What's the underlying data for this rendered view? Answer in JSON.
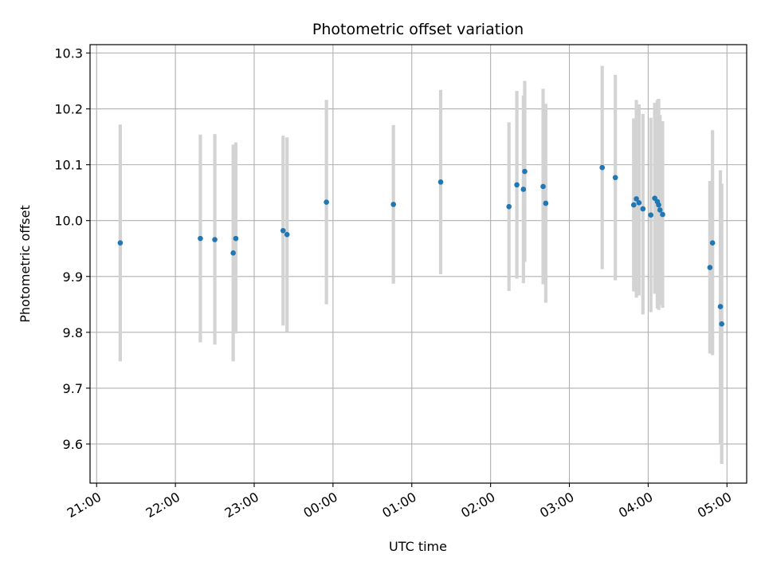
{
  "chart_data": {
    "type": "scatter",
    "title": "Photometric offset variation",
    "xlabel": "UTC time",
    "ylabel": "Photometric offset",
    "grid": true,
    "legend": "none",
    "xlim": [
      "20:55",
      "05:15"
    ],
    "ylim": [
      9.53,
      10.315
    ],
    "x_ticks": [
      "21:00",
      "22:00",
      "23:00",
      "00:00",
      "01:00",
      "02:00",
      "03:00",
      "04:00",
      "05:00"
    ],
    "y_ticks": [
      "9.6",
      "9.7",
      "9.8",
      "9.9",
      "10.0",
      "10.1",
      "10.2",
      "10.3"
    ],
    "colors": {
      "point": "#1f77b4",
      "errorbar": "#d3d3d3",
      "grid": "#b0b0b0"
    },
    "series": [
      {
        "points": [
          {
            "x": "21:18",
            "y": 9.96,
            "ylow": 9.748,
            "yhigh": 10.172
          },
          {
            "x": "22:19",
            "y": 9.968,
            "ylow": 9.782,
            "yhigh": 10.154
          },
          {
            "x": "22:30",
            "y": 9.966,
            "ylow": 9.778,
            "yhigh": 10.155
          },
          {
            "x": "22:44",
            "y": 9.942,
            "ylow": 9.748,
            "yhigh": 10.136
          },
          {
            "x": "22:46",
            "y": 9.968,
            "ylow": 9.798,
            "yhigh": 10.14
          },
          {
            "x": "23:22",
            "y": 9.982,
            "ylow": 9.812,
            "yhigh": 10.152
          },
          {
            "x": "23:25",
            "y": 9.975,
            "ylow": 9.801,
            "yhigh": 10.149
          },
          {
            "x": "23:55",
            "y": 10.033,
            "ylow": 9.85,
            "yhigh": 10.216
          },
          {
            "x": "00:46",
            "y": 10.029,
            "ylow": 9.887,
            "yhigh": 10.171
          },
          {
            "x": "01:22",
            "y": 10.069,
            "ylow": 9.904,
            "yhigh": 10.234
          },
          {
            "x": "02:14",
            "y": 10.025,
            "ylow": 9.874,
            "yhigh": 10.176
          },
          {
            "x": "02:20",
            "y": 10.064,
            "ylow": 9.896,
            "yhigh": 10.232
          },
          {
            "x": "02:25",
            "y": 10.056,
            "ylow": 9.888,
            "yhigh": 10.224
          },
          {
            "x": "02:26",
            "y": 10.088,
            "ylow": 9.926,
            "yhigh": 10.25
          },
          {
            "x": "02:40",
            "y": 10.061,
            "ylow": 9.886,
            "yhigh": 10.236
          },
          {
            "x": "02:42",
            "y": 10.031,
            "ylow": 9.853,
            "yhigh": 10.209
          },
          {
            "x": "03:25",
            "y": 10.095,
            "ylow": 9.913,
            "yhigh": 10.277
          },
          {
            "x": "03:35",
            "y": 10.077,
            "ylow": 9.893,
            "yhigh": 10.261
          },
          {
            "x": "03:49",
            "y": 10.028,
            "ylow": 9.873,
            "yhigh": 10.183
          },
          {
            "x": "03:51",
            "y": 10.039,
            "ylow": 9.862,
            "yhigh": 10.216
          },
          {
            "x": "03:53",
            "y": 10.032,
            "ylow": 9.866,
            "yhigh": 10.208
          },
          {
            "x": "03:56",
            "y": 10.021,
            "ylow": 9.832,
            "yhigh": 10.191
          },
          {
            "x": "04:02",
            "y": 10.01,
            "ylow": 9.836,
            "yhigh": 10.184
          },
          {
            "x": "04:05",
            "y": 10.04,
            "ylow": 9.869,
            "yhigh": 10.211
          },
          {
            "x": "04:07",
            "y": 10.034,
            "ylow": 9.843,
            "yhigh": 10.216
          },
          {
            "x": "04:08",
            "y": 10.028,
            "ylow": 9.84,
            "yhigh": 10.218
          },
          {
            "x": "04:09",
            "y": 10.019,
            "ylow": 9.849,
            "yhigh": 10.189
          },
          {
            "x": "04:11",
            "y": 10.011,
            "ylow": 9.844,
            "yhigh": 10.178
          },
          {
            "x": "04:47",
            "y": 9.916,
            "ylow": 9.762,
            "yhigh": 10.071
          },
          {
            "x": "04:49",
            "y": 9.96,
            "ylow": 9.759,
            "yhigh": 10.162
          },
          {
            "x": "04:55",
            "y": 9.846,
            "ylow": 9.601,
            "yhigh": 10.09
          },
          {
            "x": "04:56",
            "y": 9.815,
            "ylow": 9.564,
            "yhigh": 10.066
          }
        ]
      }
    ]
  }
}
